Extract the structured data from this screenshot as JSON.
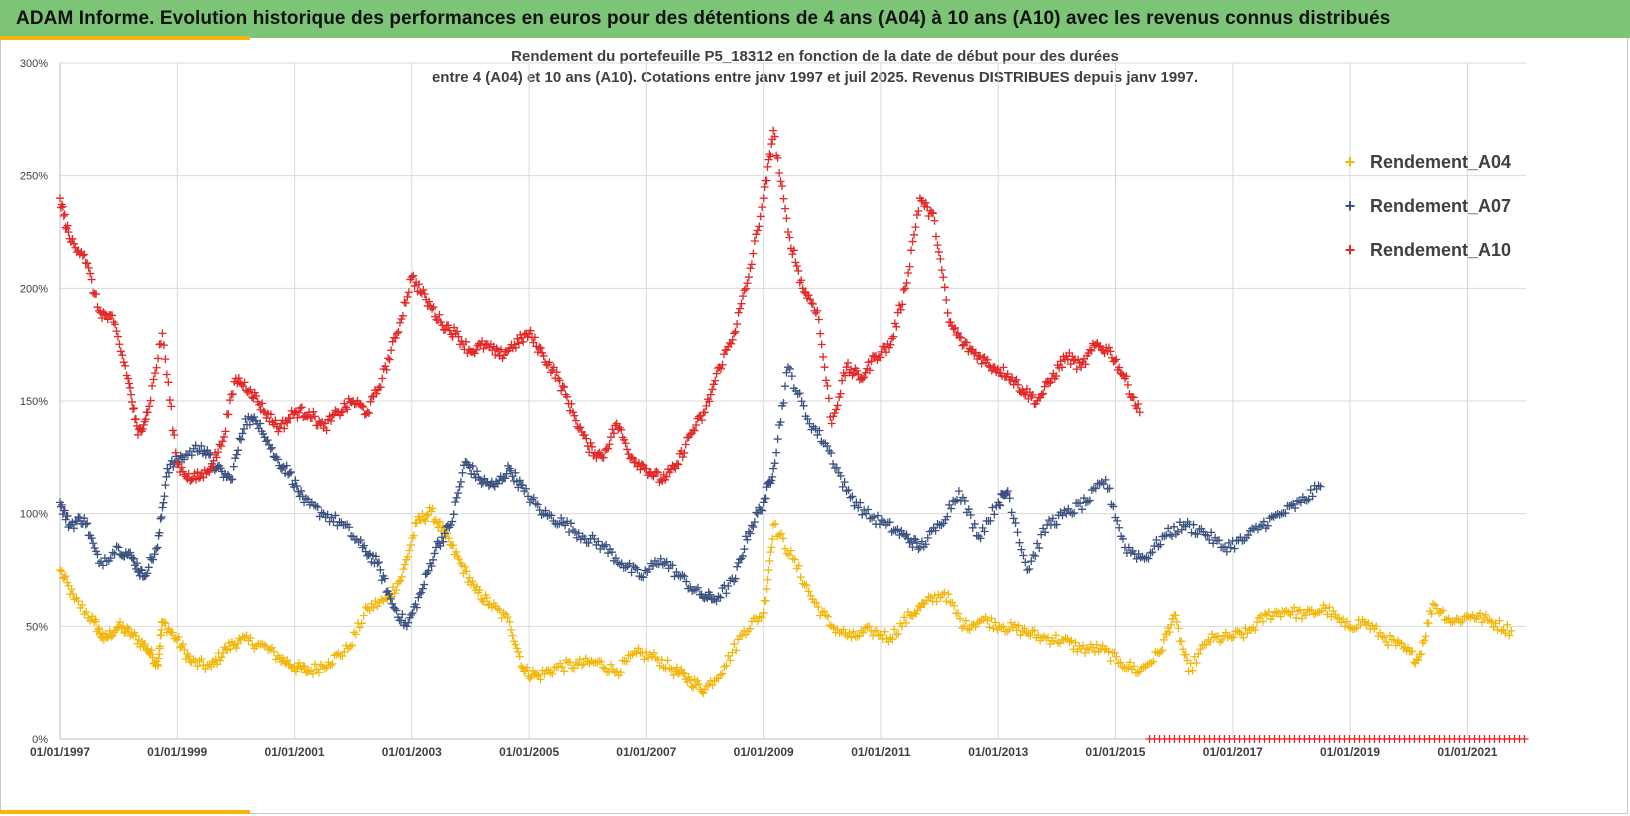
{
  "header": {
    "title": "ADAM Informe. Evolution historique des performances en euros pour des détentions de 4 ans (A04) à 10 ans (A10) avec les revenus connus distribués",
    "banner_color": "#7cc576",
    "accent_color": "#f2b70a"
  },
  "chart_data": {
    "type": "scatter",
    "title_line1": "Rendement du portefeuille P5_18312 en fonction de la date de début pour des durées",
    "title_line2": "entre 4 (A04) et 10 ans (A10). Cotations entre janv 1997 et juil 2025. Revenus DISTRIBUES depuis janv 1997.",
    "marker": "+",
    "grid": true,
    "legend_position": "right",
    "xlim": [
      "1997-01-01",
      "2022-01-01"
    ],
    "ylim": [
      0,
      3.0
    ],
    "yticks": [
      0,
      0.5,
      1.0,
      1.5,
      2.0,
      2.5,
      3.0
    ],
    "ytick_labels": [
      "0%",
      "50%",
      "100%",
      "150%",
      "200%",
      "250%",
      "300%"
    ],
    "xticks": [
      "1997-01-01",
      "1999-01-01",
      "2001-01-01",
      "2003-01-01",
      "2005-01-01",
      "2007-01-01",
      "2009-01-01",
      "2011-01-01",
      "2013-01-01",
      "2015-01-01",
      "2017-01-01",
      "2019-01-01",
      "2021-01-01"
    ],
    "xtick_labels": [
      "01/01/1997",
      "01/01/1999",
      "01/01/2001",
      "01/01/2003",
      "01/01/2005",
      "01/01/2007",
      "01/01/2009",
      "01/01/2011",
      "01/01/2013",
      "01/01/2015",
      "01/01/2017",
      "01/01/2019",
      "01/01/2021"
    ],
    "series": [
      {
        "name": "Rendement_A04",
        "color": "#f2b70a",
        "x": [
          "1997-01-01",
          "1997-04-01",
          "1997-08-01",
          "1997-10-01",
          "1998-01-01",
          "1998-04-01",
          "1998-07-01",
          "1998-09-01",
          "1998-10-01",
          "1999-01-01",
          "1999-04-01",
          "1999-08-01",
          "1999-11-01",
          "2000-02-01",
          "2000-06-01",
          "2000-10-01",
          "2001-01-01",
          "2001-04-01",
          "2001-08-01",
          "2001-12-01",
          "2002-04-01",
          "2002-08-01",
          "2002-11-01",
          "2003-02-01",
          "2003-05-01",
          "2003-08-01",
          "2003-11-01",
          "2004-02-01",
          "2004-05-01",
          "2004-09-01",
          "2004-12-01",
          "2005-03-01",
          "2005-07-01",
          "2005-11-01",
          "2006-03-01",
          "2006-07-01",
          "2006-11-01",
          "2007-03-01",
          "2007-07-01",
          "2007-10-01",
          "2008-01-01",
          "2008-05-01",
          "2008-09-01",
          "2009-01-01",
          "2009-03-01",
          "2009-07-01",
          "2009-11-01",
          "2010-03-01",
          "2010-07-01",
          "2010-11-01",
          "2011-03-01",
          "2011-07-01",
          "2011-10-01",
          "2012-02-01",
          "2012-06-01",
          "2012-10-01",
          "2013-02-01",
          "2013-06-01",
          "2013-10-01",
          "2014-02-01",
          "2014-06-01",
          "2014-10-01",
          "2015-02-01",
          "2015-06-01",
          "2015-10-01",
          "2016-01-01",
          "2016-04-01",
          "2016-08-01",
          "2016-12-01",
          "2017-04-01",
          "2017-08-01",
          "2017-12-01",
          "2018-04-01",
          "2018-08-01",
          "2018-12-01",
          "2019-04-01",
          "2019-08-01",
          "2019-12-01",
          "2020-03-01",
          "2020-06-01",
          "2020-10-01",
          "2021-02-01",
          "2021-06-01",
          "2021-10-01"
        ],
        "y": [
          0.75,
          0.62,
          0.52,
          0.44,
          0.5,
          0.46,
          0.4,
          0.33,
          0.52,
          0.44,
          0.34,
          0.32,
          0.4,
          0.44,
          0.42,
          0.36,
          0.32,
          0.3,
          0.34,
          0.4,
          0.58,
          0.62,
          0.72,
          0.96,
          1.01,
          0.9,
          0.78,
          0.66,
          0.6,
          0.52,
          0.3,
          0.28,
          0.32,
          0.33,
          0.34,
          0.3,
          0.38,
          0.36,
          0.3,
          0.26,
          0.22,
          0.32,
          0.48,
          0.56,
          0.95,
          0.8,
          0.62,
          0.5,
          0.45,
          0.48,
          0.45,
          0.55,
          0.6,
          0.65,
          0.5,
          0.53,
          0.5,
          0.48,
          0.45,
          0.44,
          0.4,
          0.4,
          0.34,
          0.3,
          0.38,
          0.55,
          0.3,
          0.44,
          0.45,
          0.47,
          0.55,
          0.57,
          0.55,
          0.58,
          0.5,
          0.52,
          0.45,
          0.4,
          0.35,
          0.6,
          0.52,
          0.55,
          0.52,
          0.48
        ]
      },
      {
        "name": "Rendement_A07",
        "color": "#3b5280",
        "x": [
          "1997-01-01",
          "1997-03-01",
          "1997-06-01",
          "1997-09-01",
          "1998-01-01",
          "1998-04-01",
          "1998-06-01",
          "1998-09-01",
          "1998-11-01",
          "1999-02-01",
          "1999-06-01",
          "1999-09-01",
          "1999-12-01",
          "2000-03-01",
          "2000-06-01",
          "2000-09-01",
          "2000-12-01",
          "2001-03-01",
          "2001-07-01",
          "2001-11-01",
          "2002-03-01",
          "2002-06-01",
          "2002-09-01",
          "2002-12-01",
          "2003-03-01",
          "2003-06-01",
          "2003-09-01",
          "2003-12-01",
          "2004-03-01",
          "2004-06-01",
          "2004-09-01",
          "2004-12-01",
          "2005-04-01",
          "2005-08-01",
          "2005-12-01",
          "2006-04-01",
          "2006-08-01",
          "2006-12-01",
          "2007-04-01",
          "2007-08-01",
          "2007-12-01",
          "2008-03-01",
          "2008-07-01",
          "2008-10-01",
          "2009-01-01",
          "2009-03-01",
          "2009-06-01",
          "2009-10-01",
          "2010-02-01",
          "2010-06-01",
          "2010-10-01",
          "2011-02-01",
          "2011-06-01",
          "2011-09-01",
          "2012-01-01",
          "2012-05-01",
          "2012-09-01",
          "2013-01-01",
          "2013-03-01",
          "2013-07-01",
          "2013-11-01",
          "2014-03-01",
          "2014-07-01",
          "2014-11-01",
          "2015-03-01",
          "2015-07-01",
          "2015-11-01",
          "2016-03-01",
          "2016-07-01",
          "2016-11-01",
          "2017-03-01",
          "2017-07-01",
          "2017-11-01",
          "2018-03-01",
          "2018-07-01"
        ],
        "y": [
          1.05,
          0.95,
          0.98,
          0.78,
          0.85,
          0.8,
          0.72,
          0.85,
          1.2,
          1.25,
          1.3,
          1.2,
          1.15,
          1.42,
          1.4,
          1.25,
          1.18,
          1.05,
          1.0,
          0.95,
          0.85,
          0.78,
          0.6,
          0.5,
          0.65,
          0.85,
          0.95,
          1.23,
          1.15,
          1.12,
          1.2,
          1.1,
          1.0,
          0.96,
          0.9,
          0.86,
          0.78,
          0.72,
          0.8,
          0.72,
          0.64,
          0.62,
          0.7,
          0.92,
          1.05,
          1.2,
          1.65,
          1.42,
          1.3,
          1.1,
          1.0,
          0.95,
          0.9,
          0.85,
          0.95,
          1.1,
          0.9,
          1.05,
          1.1,
          0.75,
          0.95,
          1.0,
          1.05,
          1.15,
          0.85,
          0.8,
          0.9,
          0.95,
          0.92,
          0.85,
          0.88,
          0.95,
          1.0,
          1.05,
          1.12
        ]
      },
      {
        "name": "Rendement_A10",
        "color": "#e32626",
        "x": [
          "1997-01-01",
          "1997-03-01",
          "1997-06-01",
          "1997-09-01",
          "1997-12-01",
          "1998-03-01",
          "1998-05-01",
          "1998-07-01",
          "1998-10-01",
          "1999-01-01",
          "1999-04-01",
          "1999-07-01",
          "1999-10-01",
          "2000-01-01",
          "2000-04-01",
          "2000-07-01",
          "2000-10-01",
          "2001-01-01",
          "2001-04-01",
          "2001-07-01",
          "2001-10-01",
          "2002-01-01",
          "2002-04-01",
          "2002-07-01",
          "2002-10-01",
          "2003-01-01",
          "2003-04-01",
          "2003-07-01",
          "2003-10-01",
          "2004-01-01",
          "2004-04-01",
          "2004-07-01",
          "2004-10-01",
          "2005-01-01",
          "2005-04-01",
          "2005-07-01",
          "2005-10-01",
          "2006-01-01",
          "2006-04-01",
          "2006-07-01",
          "2006-10-01",
          "2007-01-01",
          "2007-04-01",
          "2007-07-01",
          "2007-10-01",
          "2008-01-01",
          "2008-04-01",
          "2008-07-01",
          "2008-10-01",
          "2009-01-01",
          "2009-03-01",
          "2009-06-01",
          "2009-09-01",
          "2009-12-01",
          "2010-03-01",
          "2010-06-01",
          "2010-09-01",
          "2010-12-01",
          "2011-03-01",
          "2011-06-01",
          "2011-09-01",
          "2011-12-01",
          "2012-03-01",
          "2012-06-01",
          "2012-09-01",
          "2012-12-01",
          "2013-03-01",
          "2013-06-01",
          "2013-09-01",
          "2013-12-01",
          "2014-03-01",
          "2014-06-01",
          "2014-09-01",
          "2014-12-01",
          "2015-03-01",
          "2015-06-01"
        ],
        "y": [
          2.4,
          2.22,
          2.15,
          1.9,
          1.85,
          1.6,
          1.35,
          1.45,
          1.8,
          1.22,
          1.15,
          1.18,
          1.3,
          1.6,
          1.55,
          1.45,
          1.38,
          1.45,
          1.45,
          1.38,
          1.45,
          1.5,
          1.45,
          1.6,
          1.8,
          2.05,
          1.95,
          1.85,
          1.8,
          1.72,
          1.75,
          1.7,
          1.75,
          1.8,
          1.7,
          1.6,
          1.45,
          1.3,
          1.25,
          1.4,
          1.25,
          1.2,
          1.15,
          1.2,
          1.35,
          1.45,
          1.65,
          1.8,
          2.05,
          2.4,
          2.7,
          2.25,
          2.0,
          1.9,
          1.4,
          1.65,
          1.6,
          1.7,
          1.75,
          2.0,
          2.4,
          2.3,
          1.85,
          1.75,
          1.7,
          1.65,
          1.62,
          1.55,
          1.5,
          1.6,
          1.7,
          1.65,
          1.75,
          1.72,
          1.6,
          1.45
        ]
      },
      {
        "name": "",
        "color": "#e32626",
        "x_start": "2015-08-01",
        "x_end": "2022-01-01",
        "y": 0
      }
    ]
  }
}
